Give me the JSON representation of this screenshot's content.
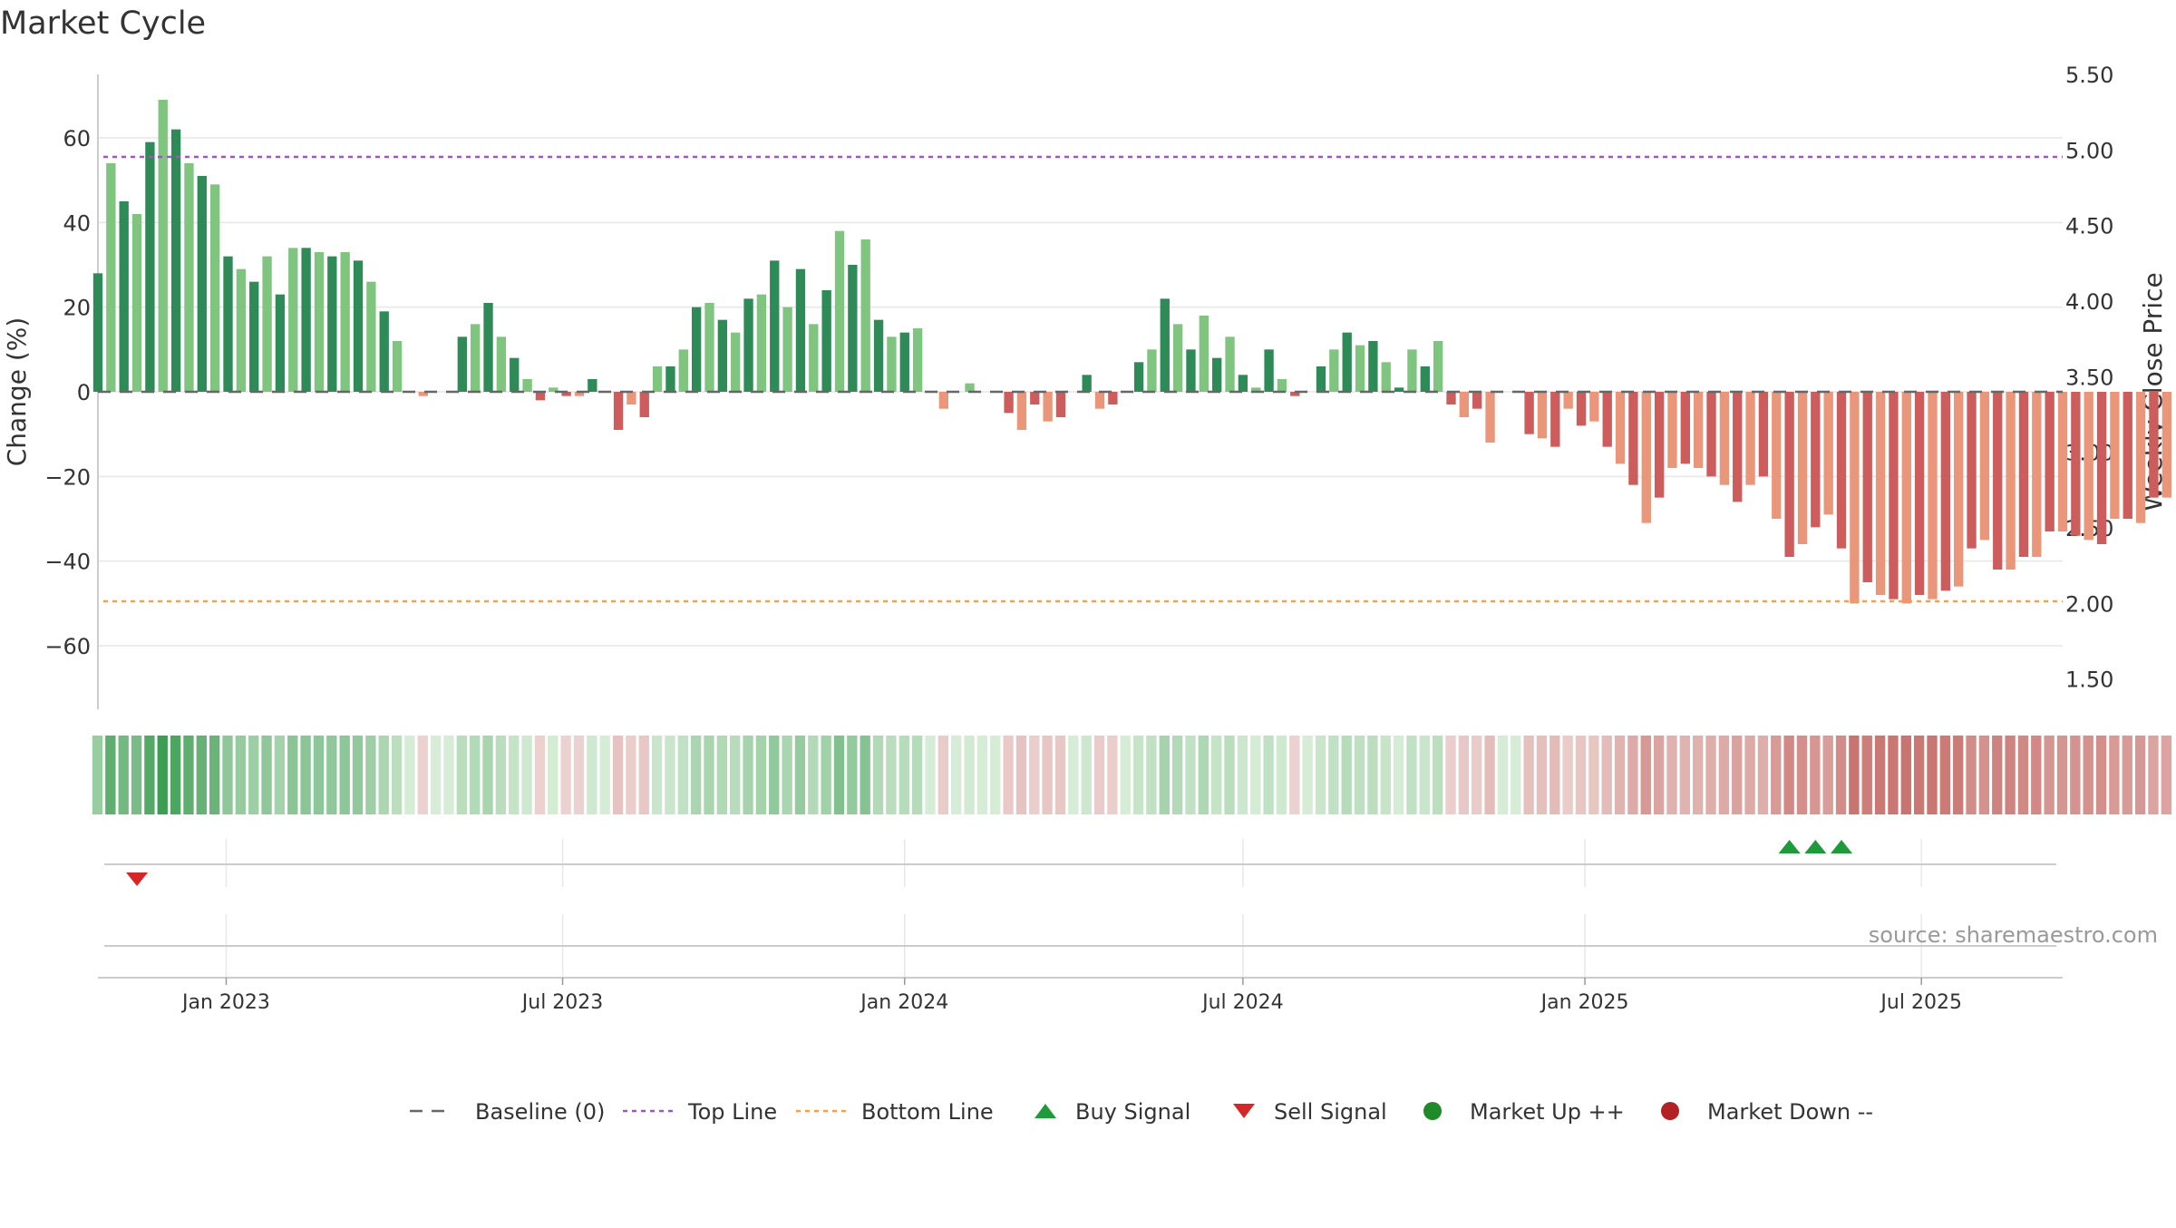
{
  "chart_data": {
    "type": "bar",
    "title": "Market Cycle",
    "source": "source: sharemaestro.com",
    "ylabel": "Change (%)",
    "y2label": "Weekly Close Price",
    "ylim": [
      -75,
      75
    ],
    "y_ticks": [
      60,
      40,
      20,
      0,
      -20,
      -40,
      -60
    ],
    "y_tick_labels": [
      "60",
      "40",
      "20",
      "0",
      "−20",
      "−40",
      "−60"
    ],
    "y2lim": [
      1.3,
      5.5
    ],
    "y2_ticks": [
      5.5,
      5.0,
      4.5,
      4.0,
      3.5,
      3.0,
      2.5,
      2.0,
      1.5
    ],
    "y2_tick_labels": [
      "5.50",
      "5.00",
      "4.50",
      "4.00",
      "3.50",
      "3.00",
      "2.50",
      "2.00",
      "1.50"
    ],
    "x_range": [
      "2022-10-24",
      "2025-09-15"
    ],
    "x_ticks": [
      {
        "date": "2023-01-01",
        "label": "Jan 2023"
      },
      {
        "date": "2023-07-01",
        "label": "Jul 2023"
      },
      {
        "date": "2024-01-01",
        "label": "Jan 2024"
      },
      {
        "date": "2024-07-01",
        "label": "Jul 2024"
      },
      {
        "date": "2025-01-01",
        "label": "Jan 2025"
      },
      {
        "date": "2025-07-01",
        "label": "Jul 2025"
      }
    ],
    "start_date": "2022-10-24",
    "week_step_days": 7,
    "values": [
      28,
      54,
      45,
      42,
      59,
      69,
      62,
      54,
      51,
      49,
      32,
      29,
      26,
      32,
      23,
      34,
      34,
      33,
      32,
      33,
      31,
      26,
      19,
      12,
      0,
      -1,
      0,
      0,
      13,
      16,
      21,
      13,
      8,
      3,
      -2,
      1,
      -1,
      -1,
      3,
      0,
      -9,
      -3,
      -6,
      6,
      6,
      10,
      20,
      21,
      17,
      14,
      22,
      23,
      31,
      20,
      29,
      16,
      24,
      38,
      30,
      36,
      17,
      13,
      14,
      15,
      0,
      -4,
      0,
      2,
      0,
      0,
      -5,
      -9,
      -3,
      -7,
      -6,
      0,
      4,
      -4,
      -3,
      0,
      7,
      10,
      22,
      16,
      10,
      18,
      8,
      13,
      4,
      1,
      10,
      3,
      -1,
      0,
      6,
      10,
      14,
      11,
      12,
      7,
      1,
      10,
      6,
      12,
      -3,
      -6,
      -4,
      -12,
      0,
      0,
      -10,
      -11,
      -13,
      -4,
      -8,
      -7,
      -13,
      -17,
      -22,
      -31,
      -25,
      -18,
      -17,
      -18,
      -20,
      -22,
      -26,
      -22,
      -20,
      -30,
      -39,
      -36,
      -32,
      -29,
      -37,
      -50,
      -45,
      -48,
      -49,
      -50,
      -48,
      -49,
      -47,
      -46,
      -37,
      -35,
      -42,
      -42,
      -39,
      -39,
      -33,
      -33,
      -34,
      -35,
      -36,
      -30,
      -30,
      -31,
      -25,
      -25
    ],
    "top_line": 55.5,
    "bottom_line": -49.5,
    "baseline": 0,
    "buy_signals": [
      "2025-04-21",
      "2025-05-05",
      "2025-05-19"
    ],
    "sell_signals": [
      "2022-11-14"
    ],
    "legend": [
      {
        "label": "Baseline (0)",
        "style": "dash-gray"
      },
      {
        "label": "Top Line",
        "style": "dot-purple"
      },
      {
        "label": "Bottom Line",
        "style": "dot-orange"
      },
      {
        "label": "Buy Signal",
        "style": "triangle-up-green"
      },
      {
        "label": "Sell Signal",
        "style": "triangle-down-red"
      },
      {
        "label": "Market Up ++",
        "style": "circle-green"
      },
      {
        "label": "Market Down --",
        "style": "circle-red"
      }
    ],
    "legend_placement": "bottom-center",
    "colors": {
      "pos_strong": "#2e8b57",
      "pos_light": "#7fc47f",
      "neg_strong": "#cd5c5c",
      "neg_light": "#e9967a",
      "top_line": "#9b59b6",
      "bottom_line": "#f0a050",
      "baseline": "#666666",
      "buy": "#1e9a3a",
      "sell": "#d62728",
      "market_up": "#1e8a2a",
      "market_down": "#b22222",
      "grid": "#e6e6e6"
    }
  }
}
